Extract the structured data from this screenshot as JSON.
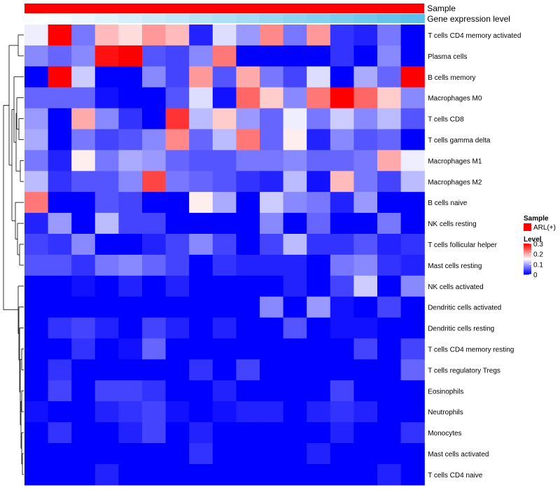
{
  "chart_data": {
    "type": "heatmap",
    "annotation_tracks": [
      {
        "name": "Sample",
        "kind": "categorical",
        "value": "ARL(+)",
        "color": "#FF0000"
      },
      {
        "name": "Gene expression level",
        "kind": "gradient",
        "color_low": "#FFFFFF",
        "color_high": "#5BC0EB"
      }
    ],
    "rows": [
      "T cells CD4 memory activated",
      "Plasma cells",
      "B cells memory",
      "Macrophages M0",
      "T cells CD8",
      "T cells gamma delta",
      "Macrophages M1",
      "Macrophages M2",
      "B cells naive",
      "NK cells resting",
      "T cells follicular helper",
      "Mast cells resting",
      "NK cells activated",
      "Dendritic cells activated",
      "Dendritic cells resting",
      "T cells CD4 memory resting",
      "T cells regulatory  Tregs",
      "Eosinophils",
      "Neutrophils",
      "Monocytes",
      "Mast cells activated",
      "T cells CD4 naive"
    ],
    "n_columns": 17,
    "values": [
      [
        0.14,
        0.3,
        0.07,
        0.19,
        0.17,
        0.21,
        0.19,
        0.02,
        0.13,
        0.09,
        0.22,
        0.07,
        0.21,
        0.03,
        0.02,
        0.07,
        0.0
      ],
      [
        0.08,
        0.06,
        0.08,
        0.29,
        0.3,
        0.05,
        0.04,
        0.08,
        0.23,
        0.0,
        0.0,
        0.0,
        0.0,
        0.03,
        0.0,
        0.08,
        0.0
      ],
      [
        0.0,
        0.3,
        0.12,
        0.0,
        0.0,
        0.08,
        0.04,
        0.21,
        0.05,
        0.2,
        0.07,
        0.04,
        0.13,
        0.0,
        0.1,
        0.06,
        0.3
      ],
      [
        0.06,
        0.06,
        0.06,
        0.01,
        0.0,
        0.0,
        0.05,
        0.13,
        0.01,
        0.24,
        0.18,
        0.08,
        0.23,
        0.3,
        0.24,
        0.18,
        0.08
      ],
      [
        0.09,
        0.0,
        0.2,
        0.08,
        0.03,
        0.0,
        0.27,
        0.11,
        0.18,
        0.09,
        0.06,
        0.14,
        0.07,
        0.12,
        0.08,
        0.11,
        0.05
      ],
      [
        0.1,
        0.0,
        0.07,
        0.04,
        0.05,
        0.08,
        0.22,
        0.06,
        0.11,
        0.23,
        0.06,
        0.16,
        0.02,
        0.08,
        0.05,
        0.06,
        0.0
      ],
      [
        0.07,
        0.02,
        0.16,
        0.07,
        0.1,
        0.09,
        0.06,
        0.05,
        0.05,
        0.07,
        0.07,
        0.08,
        0.06,
        0.06,
        0.07,
        0.2,
        0.14
      ],
      [
        0.11,
        0.03,
        0.05,
        0.05,
        0.08,
        0.26,
        0.07,
        0.06,
        0.05,
        0.03,
        0.02,
        0.11,
        0.01,
        0.19,
        0.07,
        0.04,
        0.11
      ],
      [
        0.23,
        0.0,
        0.0,
        0.05,
        0.04,
        0.0,
        0.0,
        0.16,
        0.1,
        0.0,
        0.12,
        0.08,
        0.07,
        0.02,
        0.09,
        0.0,
        0.0
      ],
      [
        0.02,
        0.09,
        0.0,
        0.11,
        0.04,
        0.04,
        0.0,
        0.0,
        0.0,
        0.0,
        0.08,
        0.0,
        0.06,
        0.0,
        0.0,
        0.07,
        0.0
      ],
      [
        0.04,
        0.03,
        0.08,
        0.0,
        0.0,
        0.02,
        0.04,
        0.08,
        0.04,
        0.0,
        0.04,
        0.11,
        0.03,
        0.03,
        0.05,
        0.02,
        0.03
      ],
      [
        0.05,
        0.05,
        0.03,
        0.07,
        0.08,
        0.06,
        0.04,
        0.0,
        0.03,
        0.02,
        0.02,
        0.02,
        0.0,
        0.07,
        0.08,
        0.03,
        0.02
      ],
      [
        0.0,
        0.0,
        0.01,
        0.0,
        0.02,
        0.0,
        0.02,
        0.0,
        0.0,
        0.0,
        0.0,
        0.02,
        0.0,
        0.04,
        0.12,
        0.0,
        0.08
      ],
      [
        0.0,
        0.0,
        0.0,
        0.0,
        0.0,
        0.0,
        0.0,
        0.0,
        0.0,
        0.0,
        0.08,
        0.0,
        0.09,
        0.01,
        0.0,
        0.04,
        0.0
      ],
      [
        0.0,
        0.03,
        0.04,
        0.02,
        0.0,
        0.04,
        0.02,
        0.0,
        0.02,
        0.0,
        0.0,
        0.05,
        0.0,
        0.01,
        0.01,
        0.0,
        0.0
      ],
      [
        0.0,
        0.0,
        0.03,
        0.0,
        0.01,
        0.06,
        0.0,
        0.0,
        0.0,
        0.0,
        0.0,
        0.0,
        0.0,
        0.0,
        0.04,
        0.0,
        0.04
      ],
      [
        0.0,
        0.03,
        0.0,
        0.0,
        0.0,
        0.0,
        0.0,
        0.03,
        0.0,
        0.04,
        0.0,
        0.0,
        0.0,
        0.0,
        0.0,
        0.0,
        0.06
      ],
      [
        0.0,
        0.04,
        0.0,
        0.04,
        0.04,
        0.03,
        0.0,
        0.0,
        0.02,
        0.0,
        0.0,
        0.0,
        0.0,
        0.04,
        0.0,
        0.0,
        0.0
      ],
      [
        0.01,
        0.0,
        0.0,
        0.02,
        0.03,
        0.04,
        0.01,
        0.0,
        0.01,
        0.02,
        0.02,
        0.0,
        0.02,
        0.03,
        0.02,
        0.0,
        0.0
      ],
      [
        0.0,
        0.03,
        0.0,
        0.0,
        0.02,
        0.04,
        0.0,
        0.02,
        0.0,
        0.0,
        0.0,
        0.0,
        0.0,
        0.02,
        0.0,
        0.0,
        0.03
      ],
      [
        0.0,
        0.0,
        0.0,
        0.0,
        0.0,
        0.0,
        0.0,
        0.03,
        0.0,
        0.0,
        0.0,
        0.0,
        0.02,
        0.0,
        0.0,
        0.0,
        0.0
      ],
      [
        0.0,
        0.0,
        0.0,
        0.02,
        0.0,
        0.0,
        0.0,
        0.0,
        0.0,
        0.0,
        0.0,
        0.0,
        0.0,
        0.0,
        0.0,
        0.02,
        0.0
      ]
    ],
    "color_scale": {
      "min": 0,
      "mid": 0.15,
      "max": 0.3,
      "low": "#0000FF",
      "middle": "#FFFFFF",
      "high": "#FF0000"
    },
    "row_dendrogram": true,
    "legend": {
      "placement": "right",
      "sample_title": "Sample",
      "sample_entry": "ARL(+)",
      "sample_color": "#FF0000",
      "level_title": "Level",
      "level_ticks": [
        "0.3",
        "0.2",
        "0.1",
        "0"
      ],
      "level_tick_values": [
        0.3,
        0.2,
        0.1,
        0
      ]
    }
  }
}
